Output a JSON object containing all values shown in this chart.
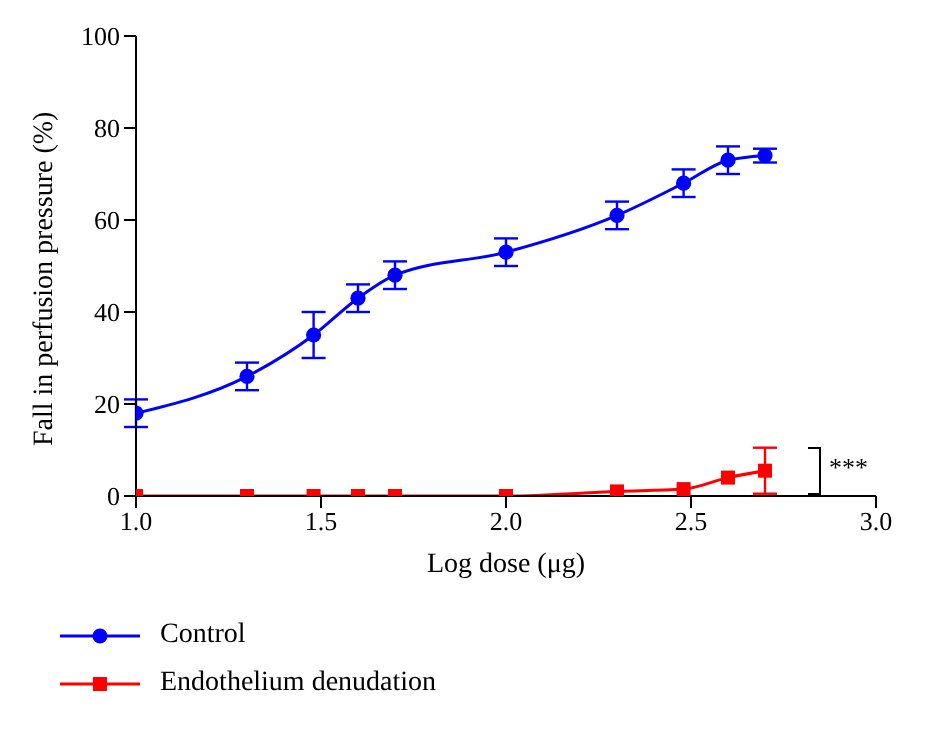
{
  "chart_data": {
    "type": "line",
    "xlabel": "Log dose (μg)",
    "ylabel": "Fall in perfusion pressure (%)",
    "x": [
      1.0,
      1.3,
      1.48,
      1.6,
      1.7,
      2.0,
      2.3,
      2.48,
      2.6,
      2.7
    ],
    "series": [
      {
        "name": "Control",
        "color": "#0000ff",
        "marker": "circle",
        "values": [
          18,
          26,
          35,
          43,
          48,
          53,
          61,
          68,
          73,
          74
        ],
        "errors": [
          3,
          3,
          5,
          3,
          3,
          3,
          3,
          3,
          3,
          1.5
        ]
      },
      {
        "name": "Endothelium denudation",
        "color": "#ff0000",
        "marker": "square",
        "values": [
          0,
          0,
          0,
          0,
          0,
          0,
          1,
          1.5,
          4,
          5.5
        ],
        "errors": [
          null,
          null,
          null,
          null,
          null,
          null,
          null,
          null,
          null,
          5
        ]
      }
    ],
    "xlim": [
      1,
      3
    ],
    "xticks": [
      {
        "value": 1,
        "label": "1.0"
      },
      {
        "value": 1.5,
        "label": "1.5"
      },
      {
        "value": 2,
        "label": "2.0"
      },
      {
        "value": 2.5,
        "label": "2.5"
      },
      {
        "value": 3,
        "label": "3.0"
      }
    ],
    "ylim": [
      0,
      100
    ],
    "yticks": [
      0,
      20,
      40,
      60,
      80,
      100
    ],
    "annotations": [
      "***"
    ],
    "legend": "bottom left",
    "grid": false
  }
}
